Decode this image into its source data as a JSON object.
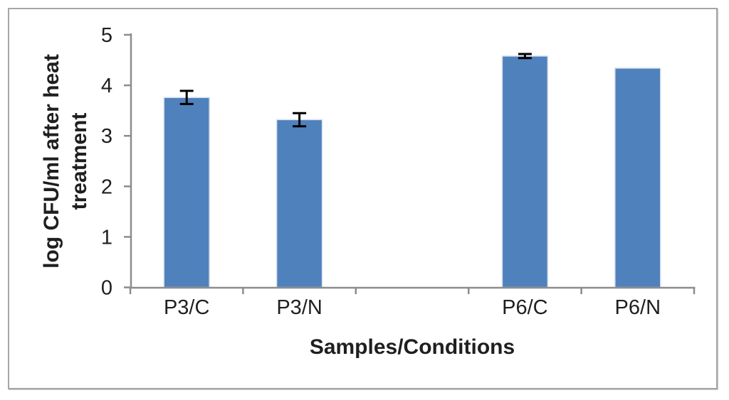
{
  "window": {
    "background": "#FFFFFF"
  },
  "chart_data": {
    "type": "bar",
    "title": "",
    "xlabel": "Samples/Conditions",
    "ylabel": "log CFU/ml after heat treatment",
    "ylabel_lines": [
      "log CFU/ml after heat",
      "treatment"
    ],
    "categories": [
      "P3/C",
      "P3/N",
      "",
      "P6/C",
      "P6/N"
    ],
    "values": [
      3.76,
      3.32,
      null,
      4.58,
      4.34
    ],
    "error_bars": [
      0.13,
      0.13,
      null,
      0.04,
      null
    ],
    "ylim": [
      0,
      5
    ],
    "yticks": [
      0,
      1,
      2,
      3,
      4,
      5
    ],
    "grid": false,
    "legend": "none",
    "colors": {
      "bar_fill": "#4F81BD",
      "bar_border": "#D9E2F0",
      "error_bar": "#000000",
      "axis_line": "#8C8C8C",
      "text": "#1F1F1F",
      "frame_border": "#A6A6A6",
      "background": "#FFFFFF"
    }
  }
}
